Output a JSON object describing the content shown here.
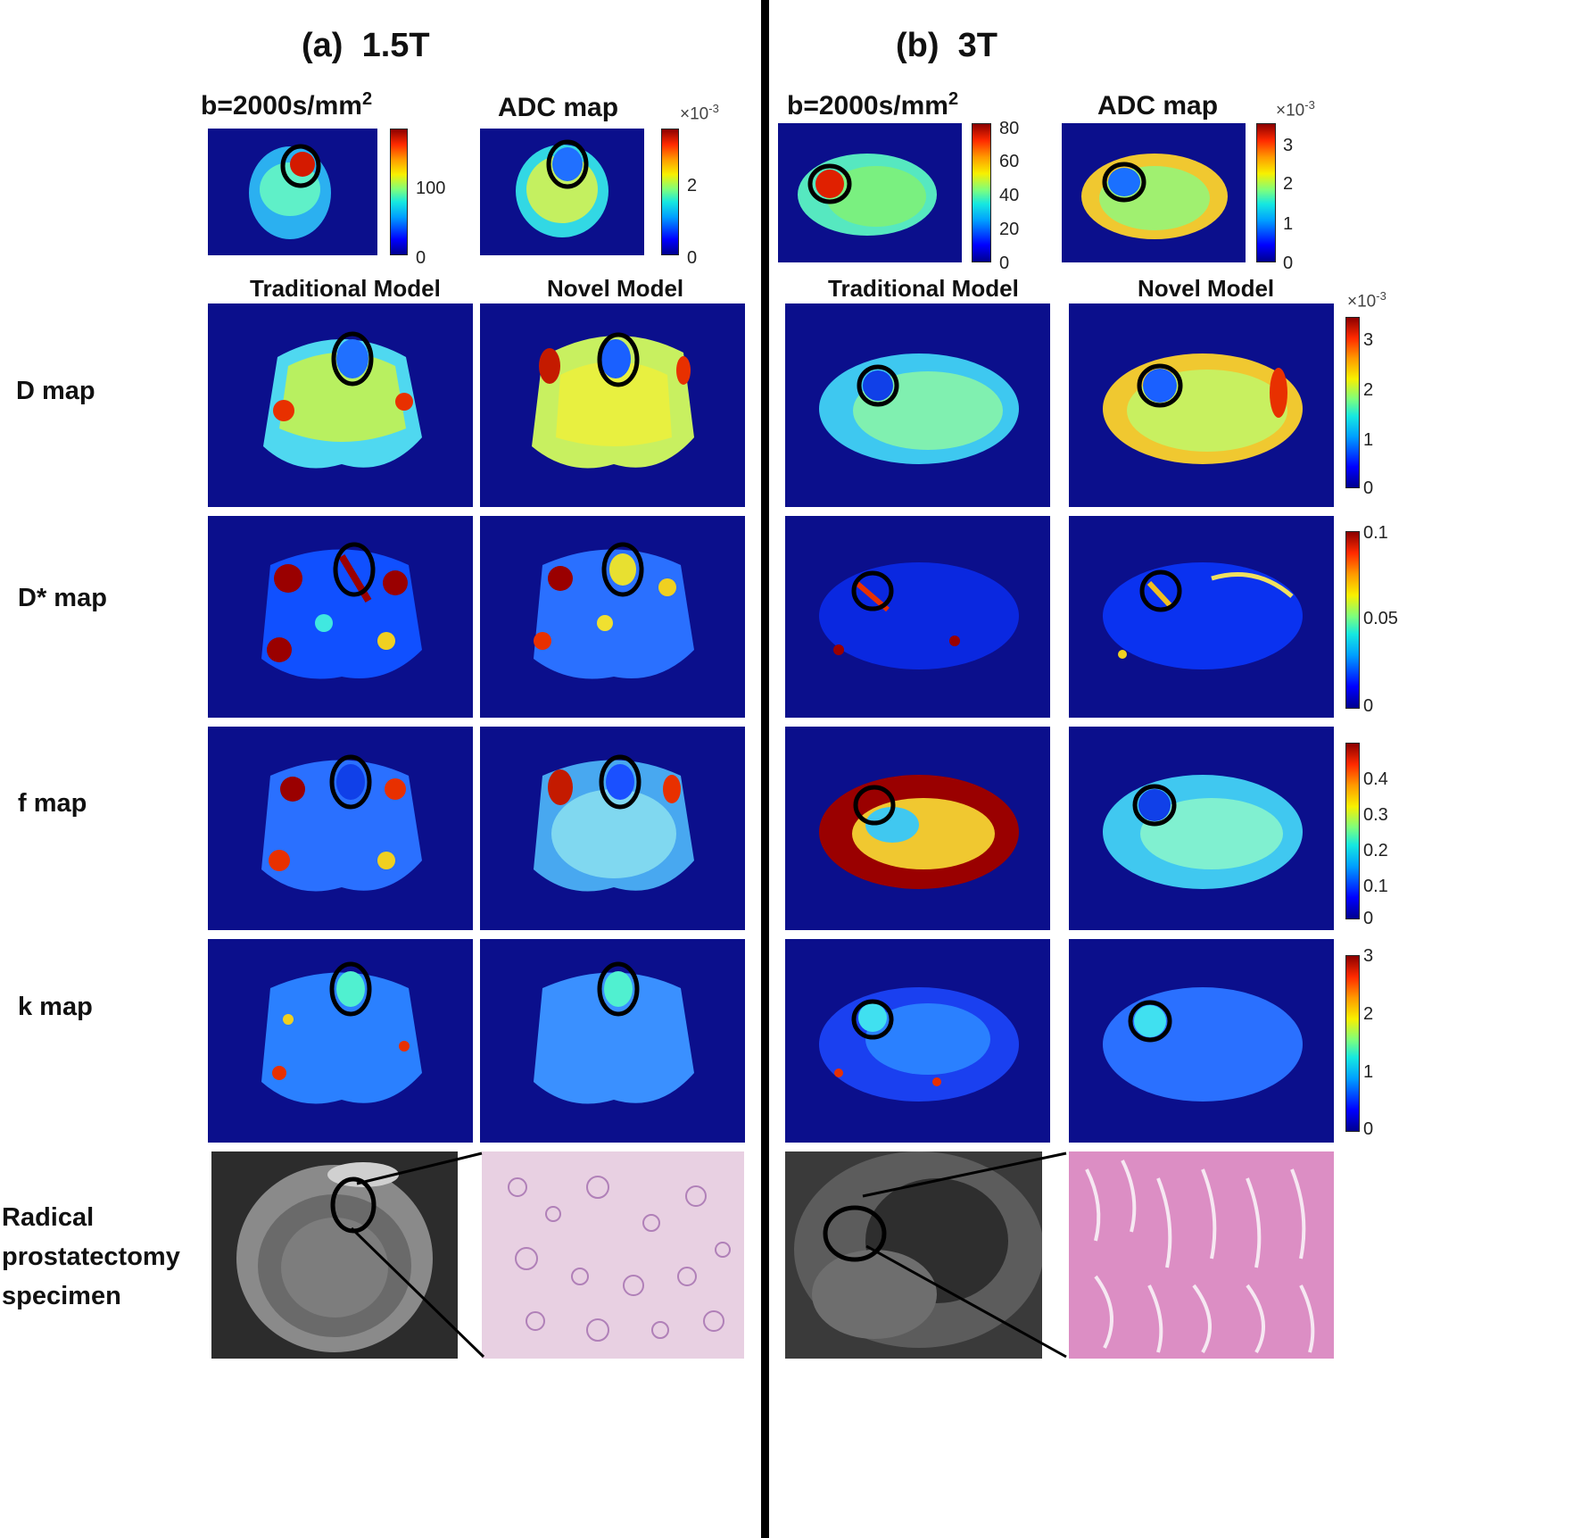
{
  "panels": {
    "a": {
      "title_letter": "(a)",
      "title_field": "1.5T"
    },
    "b": {
      "title_letter": "(b)",
      "title_field": "3T"
    }
  },
  "headers": {
    "b_value": "b=2000s/mm",
    "b_value_sup": "2",
    "adc": "ADC map",
    "traditional": "Traditional Model",
    "novel": "Novel Model",
    "exp_base": "×10",
    "exp_sup": "-3"
  },
  "row_labels": {
    "d": "D map",
    "dstar": "D* map",
    "f": "f map",
    "k": "k map",
    "specimen_1": "Radical",
    "specimen_2": "prostatectomy",
    "specimen_3": "specimen"
  },
  "colorbars": {
    "a_b2000": [
      "100",
      "0"
    ],
    "a_adc": [
      "2",
      "0"
    ],
    "b_b2000": [
      "80",
      "60",
      "40",
      "20",
      "0"
    ],
    "b_adc": [
      "3",
      "2",
      "1",
      "0"
    ],
    "d": [
      "3",
      "2",
      "1",
      "0"
    ],
    "dstar": [
      "0.1",
      "0.05",
      "0"
    ],
    "f": [
      "0.4",
      "0.3",
      "0.2",
      "0.1",
      "0"
    ],
    "k": [
      "3",
      "2",
      "1",
      "0"
    ]
  },
  "colormap": [
    "#00008f",
    "#0000ff",
    "#00a0ff",
    "#16e8e0",
    "#7dff7d",
    "#f8f000",
    "#ff9a00",
    "#ff2a00",
    "#8c0000"
  ]
}
